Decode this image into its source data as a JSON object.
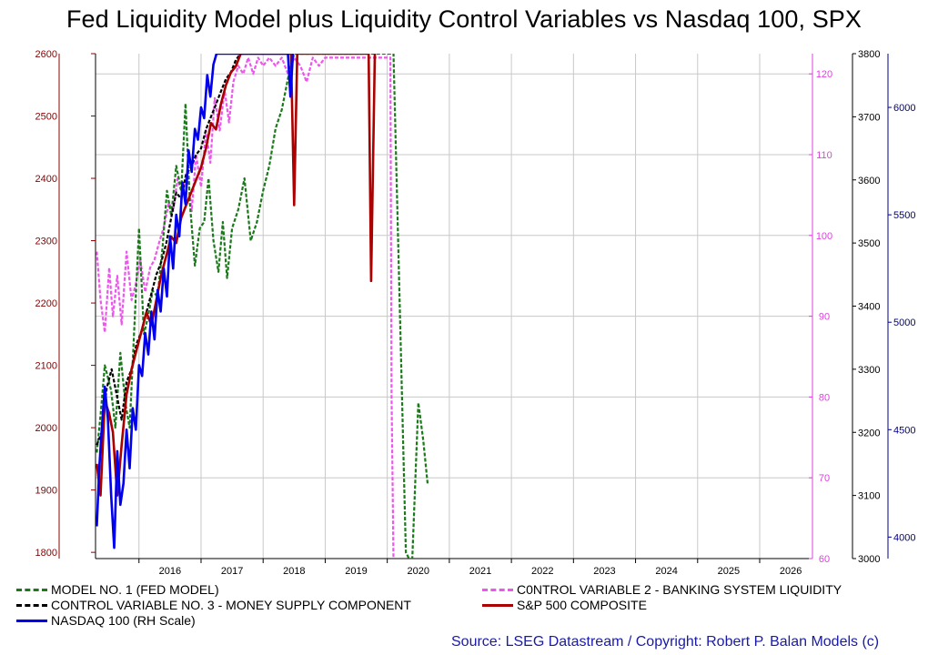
{
  "chart_data": {
    "type": "line",
    "title": "Fed Liquidity Model plus Liquidity Control Variables vs Nasdaq 100, SPX",
    "source": "Source: LSEG Datastream / Copyright: Robert P. Balan Models (c)",
    "x_ticks": [
      "2016",
      "2017",
      "2018",
      "2019",
      "2020",
      "2021",
      "2022",
      "2023",
      "2024",
      "2025",
      "2026"
    ],
    "x_range": [
      2015.3,
      2026.85
    ],
    "axes": {
      "left": {
        "range": [
          1790,
          2600
        ],
        "ticks": [
          1800,
          1900,
          2000,
          2100,
          2200,
          2300,
          2400,
          2500,
          2600
        ],
        "color": "#8b0000"
      },
      "magenta": {
        "range": [
          60,
          122.5
        ],
        "ticks": [
          60,
          70,
          80,
          90,
          100,
          110,
          120
        ],
        "color": "#e040e0"
      },
      "spx": {
        "range": [
          3000,
          3800
        ],
        "ticks": [
          3000,
          3100,
          3200,
          3300,
          3400,
          3500,
          3600,
          3700,
          3800
        ],
        "color": "#000000"
      },
      "ndx": {
        "range": [
          3900,
          6250
        ],
        "ticks": [
          4000,
          4500,
          5000,
          5500,
          6000
        ],
        "color": "#00008b"
      }
    },
    "series": [
      {
        "name": "MODEL NO. 1 (FED MODEL)",
        "color": "#1a7a1a",
        "style": "dashed",
        "axis": "left",
        "x": [
          2015.32,
          2015.38,
          2015.45,
          2015.55,
          2015.62,
          2015.7,
          2015.78,
          2015.85,
          2015.92,
          2016.0,
          2016.08,
          2016.15,
          2016.22,
          2016.3,
          2016.38,
          2016.45,
          2016.52,
          2016.6,
          2016.68,
          2016.75,
          2016.82,
          2016.9,
          2016.98,
          2017.05,
          2017.12,
          2017.2,
          2017.28,
          2017.35,
          2017.42,
          2017.5,
          2017.6,
          2017.7,
          2017.8,
          2017.9,
          2018.0,
          2018.1,
          2018.2,
          2018.3,
          2018.4,
          2018.5,
          2018.6,
          2018.75,
          2018.9,
          2019.05,
          2019.2,
          2019.3,
          2019.4,
          2019.5,
          2020.1,
          2020.2,
          2020.3,
          2020.4,
          2020.5,
          2020.58,
          2020.65
        ],
        "values": [
          1960,
          2020,
          2100,
          2060,
          2000,
          2120,
          2040,
          2000,
          2150,
          2320,
          2150,
          2180,
          2220,
          2210,
          2290,
          2380,
          2340,
          2420,
          2380,
          2520,
          2360,
          2260,
          2320,
          2330,
          2400,
          2300,
          2250,
          2330,
          2240,
          2320,
          2350,
          2400,
          2300,
          2330,
          2380,
          2420,
          2480,
          2510,
          2560,
          2600,
          2600,
          2600,
          2600,
          2600,
          2600,
          2600,
          2600,
          2600,
          2600,
          2200,
          1800,
          1780,
          2040,
          1980,
          1910
        ]
      },
      {
        "name": "C0NTROL VARIABLE 2 - BANKING SYSTEM LIQUIDITY",
        "color": "#ee55ee",
        "style": "dashed",
        "axis": "magenta",
        "x": [
          2015.32,
          2015.38,
          2015.45,
          2015.52,
          2015.58,
          2015.65,
          2015.72,
          2015.8,
          2015.88,
          2015.95,
          2016.02,
          2016.1,
          2016.18,
          2016.25,
          2016.32,
          2016.4,
          2016.48,
          2016.55,
          2016.62,
          2016.7,
          2016.78,
          2016.85,
          2016.92,
          2017.0,
          2017.08,
          2017.15,
          2017.22,
          2017.3,
          2017.38,
          2017.45,
          2017.52,
          2017.6,
          2017.68,
          2017.76,
          2017.84,
          2017.92,
          2018.0,
          2018.1,
          2018.2,
          2018.3,
          2018.4,
          2018.5,
          2018.6,
          2018.7,
          2018.8,
          2018.9,
          2019.0,
          2020.05,
          2020.07,
          2020.1
        ],
        "values": [
          98,
          92,
          88,
          96,
          90,
          95,
          89,
          98,
          92,
          94,
          97,
          93,
          96,
          97,
          99,
          101,
          104,
          103,
          107,
          105,
          108,
          103,
          110,
          106,
          113,
          109,
          117,
          113,
          118,
          114,
          119,
          121,
          120,
          122,
          120,
          122,
          121,
          122,
          121,
          122,
          120,
          122,
          121,
          119,
          122,
          121,
          122,
          122,
          80,
          60
        ]
      },
      {
        "name": "CONTROL VARIABLE NO. 3 - MONEY SUPPLY COMPONENT",
        "color": "#000000",
        "style": "dashed",
        "axis": "spx",
        "x": [
          2015.32,
          2015.4,
          2015.48,
          2015.56,
          2015.64,
          2015.72,
          2015.8,
          2015.88,
          2015.96,
          2016.04,
          2016.12,
          2016.2,
          2016.28,
          2016.36,
          2016.44,
          2016.52,
          2016.6,
          2016.68,
          2016.76,
          2016.84,
          2016.92,
          2017.0,
          2017.08,
          2017.16,
          2017.24,
          2017.32,
          2017.4,
          2017.48,
          2017.56,
          2017.64,
          2017.72
        ],
        "values": [
          3180,
          3200,
          3270,
          3300,
          3260,
          3220,
          3280,
          3300,
          3340,
          3360,
          3390,
          3420,
          3450,
          3470,
          3500,
          3540,
          3580,
          3570,
          3610,
          3620,
          3640,
          3650,
          3680,
          3700,
          3720,
          3740,
          3760,
          3770,
          3790,
          3800,
          3800
        ]
      },
      {
        "name": "S&P 500 COMPOSITE",
        "color": "#aa0000",
        "style": "solid",
        "axis": "spx",
        "x": [
          2015.32,
          2015.38,
          2015.45,
          2015.52,
          2015.58,
          2015.65,
          2015.72,
          2015.8,
          2015.88,
          2015.96,
          2016.04,
          2016.12,
          2016.2,
          2016.28,
          2016.36,
          2016.44,
          2016.52,
          2016.6,
          2016.68,
          2016.76,
          2016.84,
          2016.92,
          2017.0,
          2017.08,
          2017.16,
          2017.24,
          2017.32,
          2017.4,
          2017.48,
          2017.56,
          2017.64,
          2017.72,
          2018.0,
          2018.1,
          2018.3,
          2018.45,
          2018.5,
          2018.55,
          2019.7,
          2019.74,
          2019.8
        ],
        "values": [
          3150,
          3100,
          3250,
          3230,
          3200,
          3100,
          3180,
          3260,
          3300,
          3330,
          3360,
          3390,
          3370,
          3410,
          3450,
          3480,
          3510,
          3500,
          3540,
          3560,
          3580,
          3600,
          3620,
          3650,
          3690,
          3680,
          3720,
          3750,
          3770,
          3780,
          3800,
          3800,
          3800,
          3800,
          3800,
          3800,
          3560,
          3800,
          3800,
          3440,
          3800
        ]
      },
      {
        "name": "NASDAQ 100 (RH Scale)",
        "color": "#0000ee",
        "style": "solid",
        "axis": "ndx",
        "x": [
          2015.32,
          2015.36,
          2015.4,
          2015.45,
          2015.5,
          2015.55,
          2015.6,
          2015.65,
          2015.7,
          2015.75,
          2015.8,
          2015.85,
          2015.9,
          2015.95,
          2016.0,
          2016.05,
          2016.1,
          2016.15,
          2016.2,
          2016.25,
          2016.3,
          2016.35,
          2016.4,
          2016.45,
          2016.5,
          2016.55,
          2016.6,
          2016.65,
          2016.7,
          2016.75,
          2016.8,
          2016.85,
          2016.9,
          2016.95,
          2017.0,
          2017.05,
          2017.1,
          2017.15,
          2017.2,
          2017.25,
          2017.3,
          2017.35,
          2017.4,
          2017.45,
          2017.5,
          2017.55,
          2017.6,
          2017.65,
          2018.4,
          2018.44,
          2018.48
        ],
        "values": [
          4050,
          4320,
          4500,
          4700,
          4550,
          4200,
          3950,
          4400,
          4150,
          4250,
          4500,
          4320,
          4600,
          4500,
          4800,
          4750,
          4950,
          4850,
          5050,
          4920,
          5150,
          5050,
          5250,
          5120,
          5400,
          5250,
          5500,
          5400,
          5650,
          5550,
          5800,
          5700,
          5900,
          5850,
          6000,
          5950,
          6150,
          6050,
          6200,
          6250,
          6250,
          6250,
          6250,
          6250,
          6250,
          6250,
          6250,
          6250,
          6250,
          6050,
          6250
        ]
      }
    ],
    "legend": [
      {
        "label": "MODEL NO. 1 (FED MODEL)",
        "color": "#1a7a1a",
        "style": "dashed"
      },
      {
        "label": "C0NTROL VARIABLE 2 - BANKING SYSTEM LIQUIDITY",
        "color": "#ee55ee",
        "style": "dashed"
      },
      {
        "label": "CONTROL VARIABLE NO. 3 - MONEY SUPPLY COMPONENT",
        "color": "#000000",
        "style": "dashed"
      },
      {
        "label": "S&P 500 COMPOSITE",
        "color": "#aa0000",
        "style": "solid"
      },
      {
        "label": "NASDAQ 100 (RH Scale)",
        "color": "#0000ee",
        "style": "solid"
      }
    ]
  }
}
